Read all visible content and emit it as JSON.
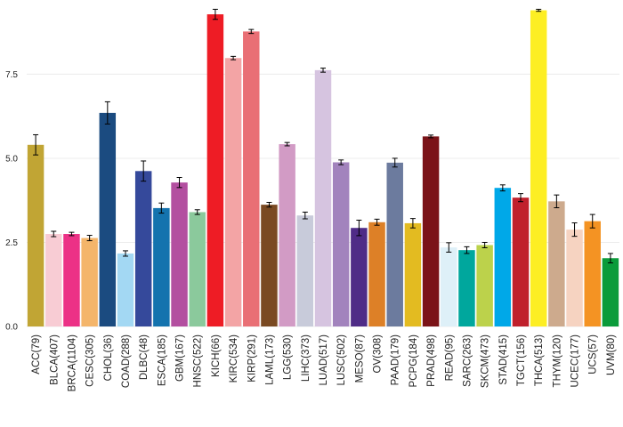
{
  "chart_data": {
    "type": "bar",
    "title": "",
    "xlabel": "",
    "ylabel": "",
    "ylim": [
      0,
      9.6
    ],
    "yticks": [
      "0.0",
      "2.5",
      "5.0",
      "7.5"
    ],
    "ytick_values": [
      0,
      2.5,
      5.0,
      7.5
    ],
    "grid": "horizontal",
    "legend": "none",
    "categories": [
      "ACC(79)",
      "BLCA(407)",
      "BRCA(1104)",
      "CESC(305)",
      "CHOL(36)",
      "COAD(288)",
      "DLBC(48)",
      "ESCA(185)",
      "GBM(167)",
      "HNSC(522)",
      "KICH(66)",
      "KIRC(534)",
      "KIRP(291)",
      "LAML(173)",
      "LGG(530)",
      "LIHC(373)",
      "LUAD(517)",
      "LUSC(502)",
      "MESO(87)",
      "OV(308)",
      "PAAD(179)",
      "PCPG(184)",
      "PRAD(498)",
      "READ(95)",
      "SARC(263)",
      "SKCM(473)",
      "STAD(415)",
      "TGCT(156)",
      "THCA(513)",
      "THYM(120)",
      "UCEC(177)",
      "UCS(57)",
      "UVM(80)"
    ],
    "values": [
      5.4,
      2.75,
      2.75,
      2.63,
      6.35,
      2.17,
      4.62,
      3.52,
      4.28,
      3.4,
      9.28,
      7.98,
      8.77,
      3.62,
      5.42,
      3.3,
      7.62,
      4.88,
      2.93,
      3.1,
      4.87,
      3.07,
      5.65,
      2.35,
      2.27,
      2.42,
      4.12,
      3.83,
      9.4,
      3.72,
      2.88,
      3.13,
      2.03
    ],
    "errors": [
      0.3,
      0.08,
      0.05,
      0.08,
      0.33,
      0.08,
      0.3,
      0.15,
      0.15,
      0.07,
      0.15,
      0.05,
      0.06,
      0.07,
      0.05,
      0.1,
      0.06,
      0.07,
      0.23,
      0.09,
      0.13,
      0.14,
      0.04,
      0.14,
      0.1,
      0.08,
      0.09,
      0.12,
      0.03,
      0.19,
      0.2,
      0.2,
      0.14
    ],
    "colors": [
      "#c1a534",
      "#f8ccd4",
      "#ec3186",
      "#f4b56a",
      "#1b4b80",
      "#a3d8f3",
      "#35499b",
      "#1473ae",
      "#b34fa0",
      "#8bc99c",
      "#ee1c25",
      "#f3a4a5",
      "#e96f75",
      "#7a4a22",
      "#d29bc5",
      "#c8cbda",
      "#d6c4e0",
      "#a283bd",
      "#4f2c87",
      "#dd8027",
      "#6c7b9e",
      "#e3bb21",
      "#7b1318",
      "#def0f8",
      "#00a79d",
      "#bcd24b",
      "#00a8e8",
      "#c0202c",
      "#fdee23",
      "#cdaa8d",
      "#f6d3c1",
      "#f49323",
      "#0b9b3a"
    ]
  }
}
